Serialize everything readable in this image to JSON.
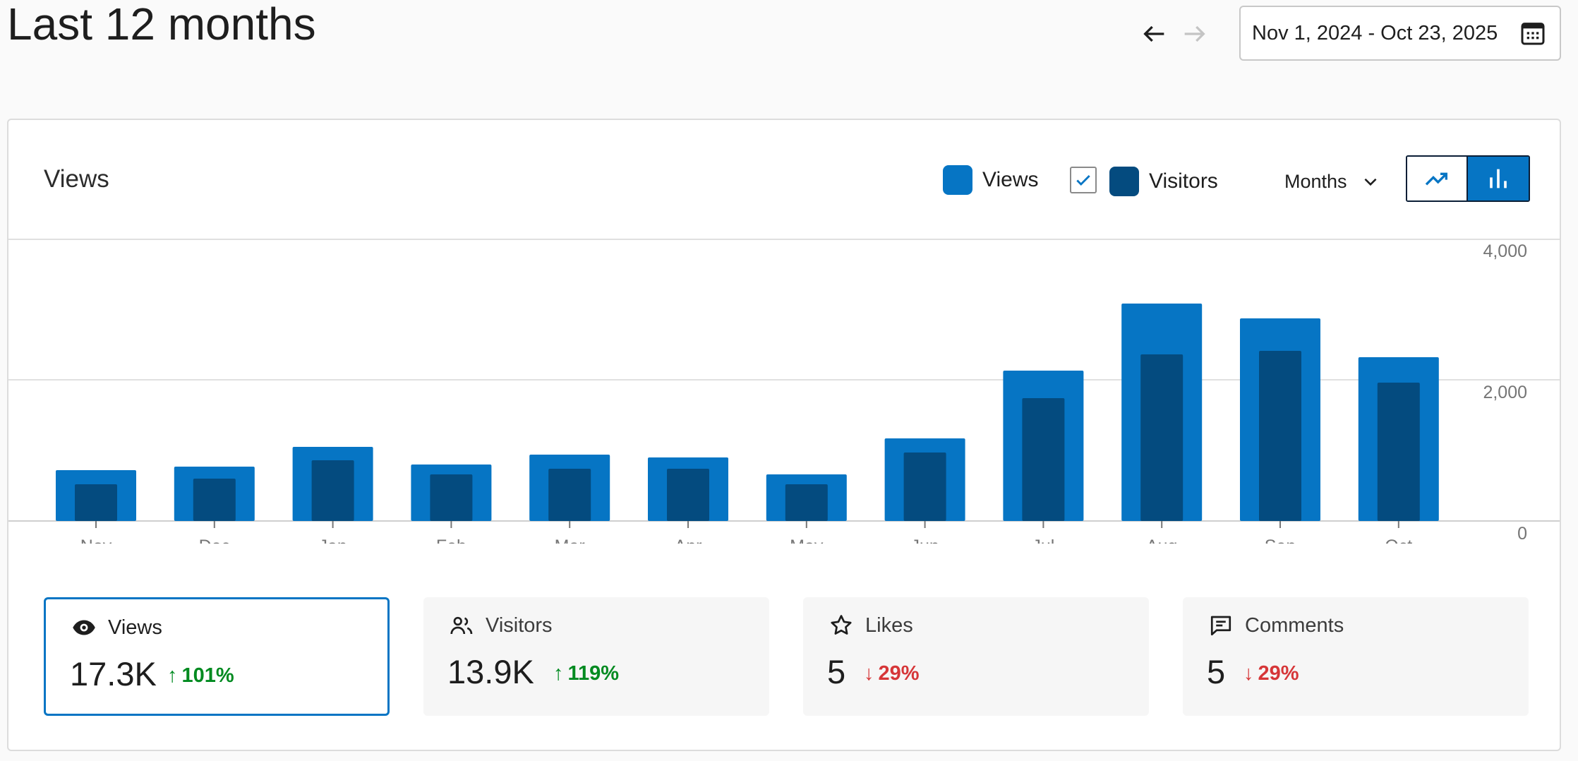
{
  "header": {
    "title": "Last 12 months",
    "date_range": "Nov 1, 2024 - Oct 23, 2025",
    "prev_icon": "arrow-left-icon",
    "next_icon": "arrow-right-icon",
    "calendar_icon": "calendar-icon"
  },
  "card": {
    "title": "Views",
    "legend": {
      "views_label": "Views",
      "visitors_label": "Visitors",
      "visitors_checked": true
    },
    "period": "Months",
    "chart_type_selected": "bar"
  },
  "colors": {
    "views": "#0675c4",
    "visitors": "#044b7f",
    "up": "#008a20",
    "down": "#d63638"
  },
  "chart_data": {
    "type": "bar",
    "categories": [
      "Nov",
      "Dec",
      "Jan",
      "Feb",
      "Mar",
      "Apr",
      "May",
      "Jun",
      "Jul",
      "Aug",
      "Sep",
      "Oct"
    ],
    "series": [
      {
        "name": "Views",
        "values": [
          720,
          770,
          1050,
          800,
          940,
          900,
          660,
          1170,
          2130,
          3080,
          2870,
          2320
        ]
      },
      {
        "name": "Visitors",
        "values": [
          520,
          600,
          860,
          660,
          740,
          740,
          520,
          970,
          1740,
          2360,
          2410,
          1960
        ]
      }
    ],
    "ylim": [
      0,
      4000
    ],
    "yticks": [
      {
        "value": 0,
        "label": "0"
      },
      {
        "value": 2000,
        "label": "2,000"
      },
      {
        "value": 4000,
        "label": "4,000"
      }
    ],
    "grid": true,
    "y_axis_position": "right"
  },
  "stats": [
    {
      "label": "Views",
      "icon": "eye-icon",
      "value": "17.3K",
      "change": "101%",
      "direction": "up",
      "selected": true
    },
    {
      "label": "Visitors",
      "icon": "people-icon",
      "value": "13.9K",
      "change": "119%",
      "direction": "up",
      "selected": false
    },
    {
      "label": "Likes",
      "icon": "star-icon",
      "value": "5",
      "change": "29%",
      "direction": "down",
      "selected": false
    },
    {
      "label": "Comments",
      "icon": "comment-icon",
      "value": "5",
      "change": "29%",
      "direction": "down",
      "selected": false
    }
  ]
}
